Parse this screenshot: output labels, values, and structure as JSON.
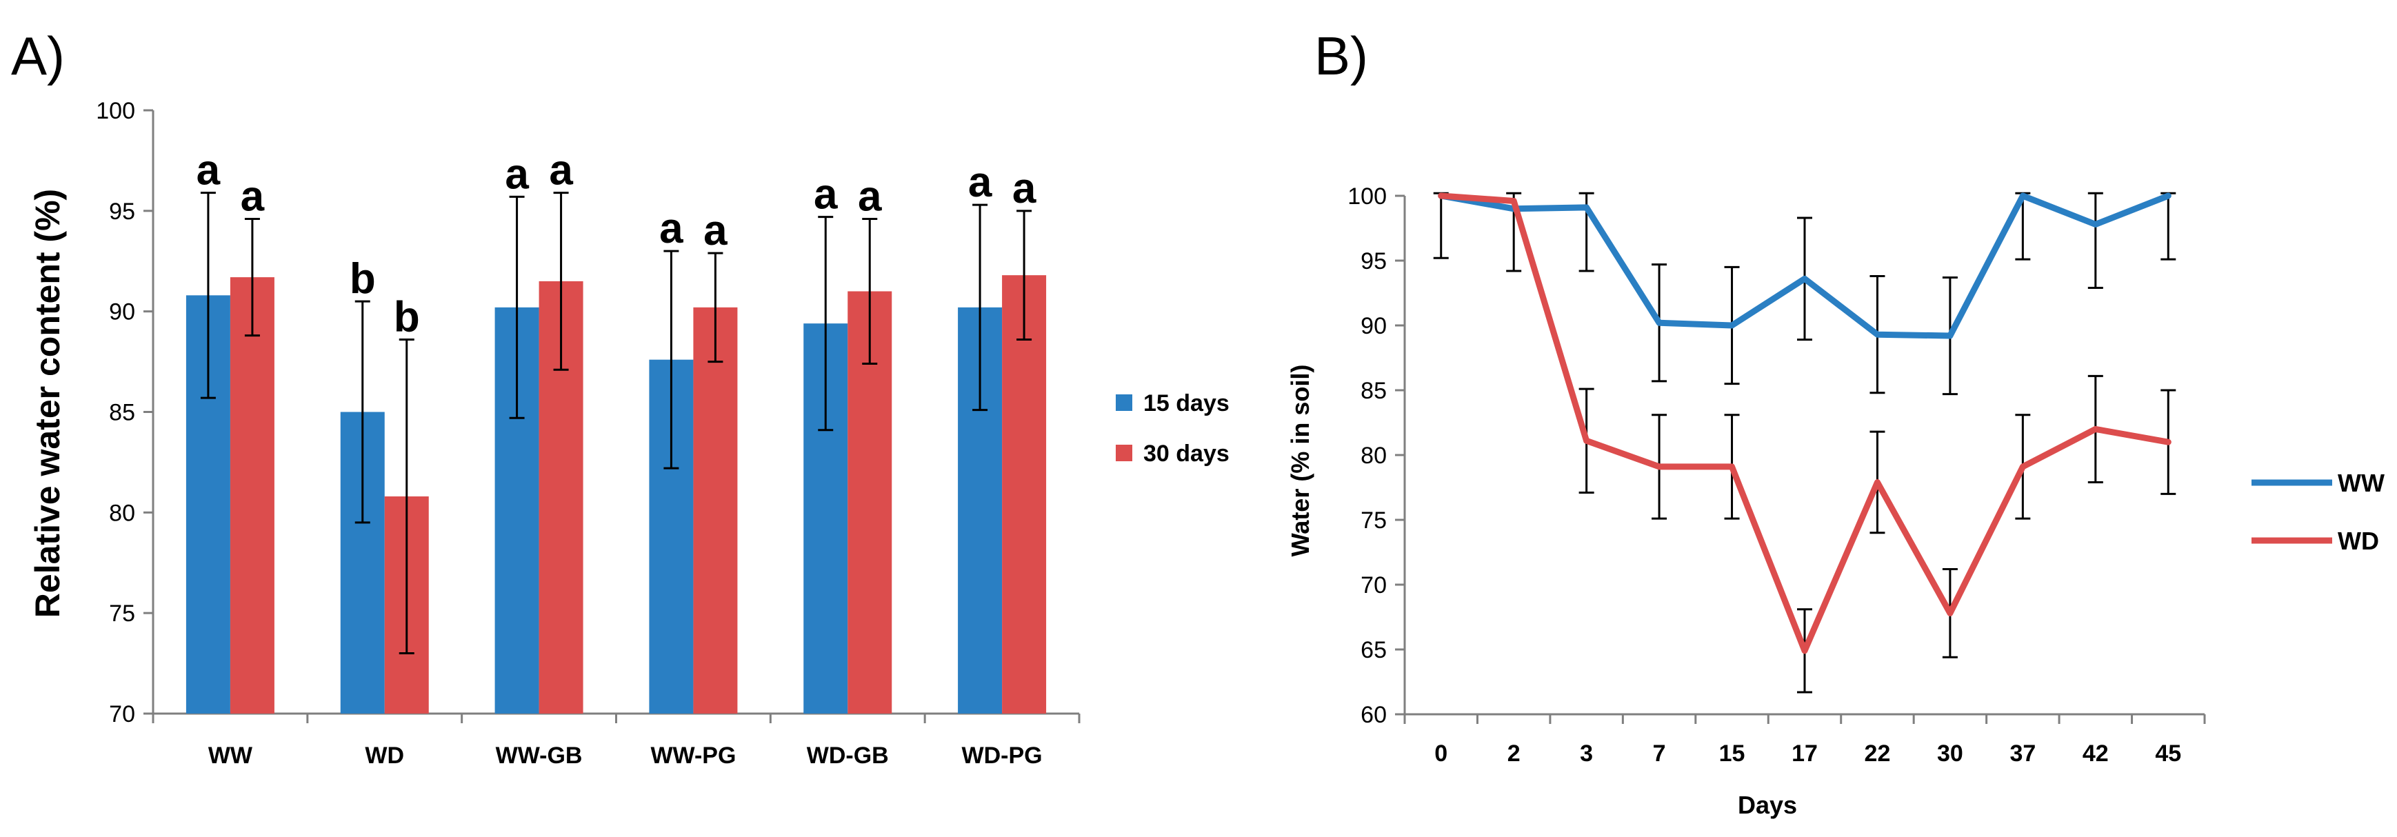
{
  "panel_labels": {
    "a": "A)",
    "b": "B)"
  },
  "colors": {
    "blue": "#2a7fc3",
    "red": "#dc4d4d",
    "axis": "#7f7f7f",
    "error": "#000000",
    "text": "#000000"
  },
  "chart_data": [
    {
      "type": "bar",
      "panel": "A)",
      "ylabel": "Relative water content (%)",
      "xlabel": "",
      "ylim": [
        70,
        100
      ],
      "yticks": [
        70,
        75,
        80,
        85,
        90,
        95,
        100
      ],
      "categories": [
        "WW",
        "WD",
        "WW-GB",
        "WW-PG",
        "WD-GB",
        "WD-PG"
      ],
      "series": [
        {
          "name": "15 days",
          "color": "#2a7fc3",
          "values": [
            90.8,
            85.0,
            90.2,
            87.6,
            89.4,
            90.2
          ],
          "errors": [
            5.1,
            5.5,
            5.5,
            5.4,
            5.3,
            5.1
          ],
          "letters": [
            "a",
            "b",
            "a",
            "a",
            "a",
            "a"
          ]
        },
        {
          "name": "30 days",
          "color": "#dc4d4d",
          "values": [
            91.7,
            80.8,
            91.5,
            90.2,
            91.0,
            91.8
          ],
          "errors": [
            2.9,
            7.8,
            4.4,
            2.7,
            3.6,
            3.2
          ],
          "letters": [
            "a",
            "b",
            "a",
            "a",
            "a",
            "a"
          ]
        }
      ],
      "legend": [
        "15 days",
        "30 days"
      ],
      "legend_position": "right",
      "grid": false
    },
    {
      "type": "line",
      "panel": "B)",
      "ylabel": "Water  (% in soil)",
      "xlabel": "Days",
      "ylim": [
        60,
        100
      ],
      "yticks": [
        60,
        65,
        70,
        75,
        80,
        85,
        90,
        95,
        100
      ],
      "categories": [
        "0",
        "2",
        "3",
        "7",
        "15",
        "17",
        "22",
        "30",
        "37",
        "42",
        "45"
      ],
      "series": [
        {
          "name": "WW",
          "color": "#2a7fc3",
          "values": [
            100.0,
            99.0,
            99.1,
            90.2,
            90.0,
            93.6,
            89.3,
            89.2,
            100.0,
            97.8,
            100.0
          ],
          "errors": [
            4.8,
            4.8,
            4.9,
            4.5,
            4.5,
            4.7,
            4.5,
            4.5,
            4.9,
            4.9,
            4.9
          ]
        },
        {
          "name": "WD",
          "color": "#dc4d4d",
          "values": [
            100.0,
            99.6,
            81.1,
            79.1,
            79.1,
            64.9,
            77.9,
            67.8,
            79.1,
            82.0,
            81.0
          ],
          "errors": [
            0.0,
            0.0,
            4.0,
            4.0,
            4.0,
            3.2,
            3.9,
            3.4,
            4.0,
            4.1,
            4.0
          ]
        }
      ],
      "legend": [
        "WW",
        "WD"
      ],
      "legend_position": "right",
      "grid": false
    }
  ]
}
